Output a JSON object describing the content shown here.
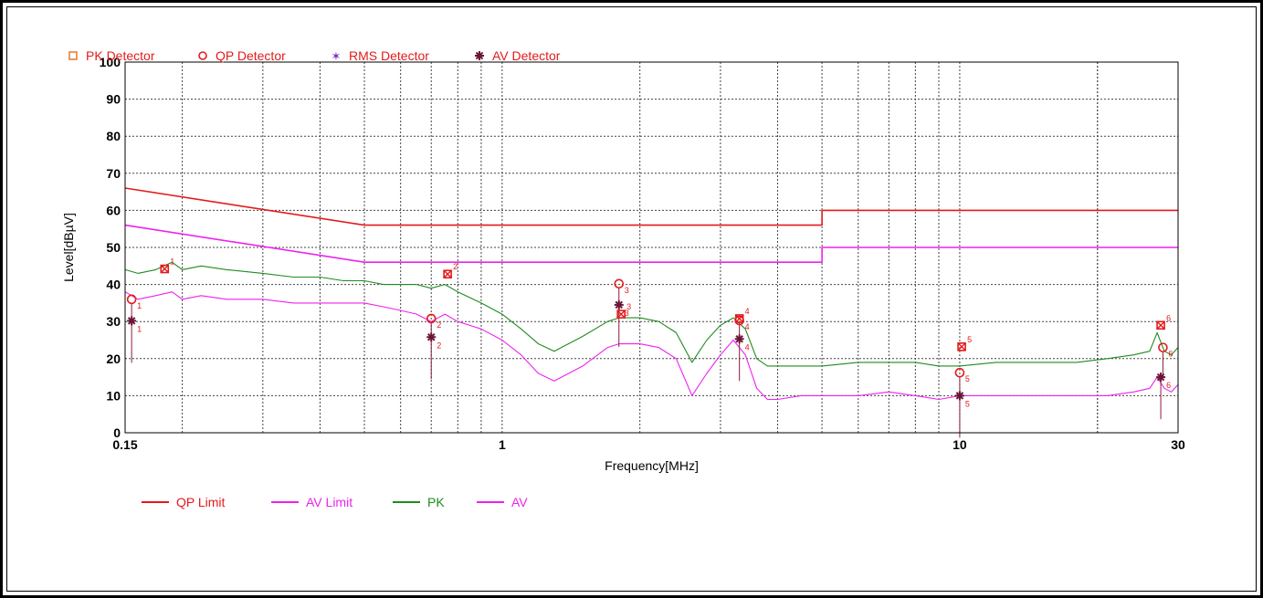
{
  "chart_data": {
    "type": "line",
    "title": "",
    "xlabel": "Frequency[MHz]",
    "ylabel": "Level[dBµV]",
    "x_scale": "log",
    "xlim": [
      0.15,
      30
    ],
    "ylim": [
      0,
      100
    ],
    "grid": true,
    "x_tick_labels": [
      {
        "value": 0.15,
        "label": "0.15"
      },
      {
        "value": 1,
        "label": "1"
      },
      {
        "value": 10,
        "label": "10"
      },
      {
        "value": 30,
        "label": "30"
      }
    ],
    "y_ticks": [
      0,
      10,
      20,
      30,
      40,
      50,
      60,
      70,
      80,
      90,
      100
    ],
    "detector_legend": [
      {
        "name": "PK Detector",
        "symbol": "□",
        "color": "#e8803a"
      },
      {
        "name": "QP Detector",
        "symbol": "○",
        "color": "#e41a1c"
      },
      {
        "name": "RMS Detector",
        "symbol": "✶",
        "color": "#7b2fbe"
      },
      {
        "name": "AV Detector",
        "symbol": "✱",
        "color": "#6b1538"
      }
    ],
    "line_legend": [
      {
        "name": "QP Limit",
        "color": "#e41a1c"
      },
      {
        "name": "AV Limit",
        "color": "#ee22ee"
      },
      {
        "name": "PK",
        "color": "#1e8c1e"
      },
      {
        "name": "AV",
        "color": "#ee22ee"
      }
    ],
    "series": [
      {
        "name": "QP Limit",
        "color": "#e41a1c",
        "x": [
          0.15,
          0.5,
          0.5,
          5,
          5,
          30
        ],
        "y": [
          66,
          56,
          56,
          56,
          60,
          60
        ]
      },
      {
        "name": "AV Limit",
        "color": "#ee22ee",
        "x": [
          0.15,
          0.5,
          0.5,
          5,
          5,
          30
        ],
        "y": [
          56,
          46,
          46,
          46,
          50,
          50
        ]
      },
      {
        "name": "PK",
        "color": "#1e8c1e",
        "x": [
          0.15,
          0.16,
          0.175,
          0.19,
          0.2,
          0.22,
          0.25,
          0.3,
          0.35,
          0.4,
          0.45,
          0.5,
          0.55,
          0.6,
          0.65,
          0.7,
          0.75,
          0.8,
          0.9,
          1.0,
          1.1,
          1.2,
          1.3,
          1.5,
          1.7,
          1.8,
          2.0,
          2.2,
          2.4,
          2.6,
          2.8,
          3.0,
          3.2,
          3.4,
          3.6,
          3.8,
          4.0,
          4.5,
          5.0,
          6.0,
          7.0,
          8.0,
          9.0,
          10.0,
          12.0,
          15.0,
          18.0,
          21.0,
          24.0,
          26.0,
          27.0,
          28.0,
          29.0,
          30.0
        ],
        "y": [
          44,
          43,
          44,
          46,
          44,
          45,
          44,
          43,
          42,
          42,
          41,
          41,
          40,
          40,
          40,
          39,
          40,
          38,
          35,
          32,
          28,
          24,
          22,
          26,
          30,
          31,
          31,
          30,
          27,
          19,
          25,
          29,
          31,
          28,
          20,
          18,
          18,
          18,
          18,
          19,
          19,
          19,
          18,
          18,
          19,
          19,
          19,
          20,
          21,
          22,
          27,
          22,
          21,
          23
        ]
      },
      {
        "name": "AV",
        "color": "#ee22ee",
        "x": [
          0.15,
          0.16,
          0.175,
          0.19,
          0.2,
          0.22,
          0.25,
          0.3,
          0.35,
          0.4,
          0.45,
          0.5,
          0.55,
          0.6,
          0.65,
          0.7,
          0.75,
          0.8,
          0.9,
          1.0,
          1.1,
          1.2,
          1.3,
          1.5,
          1.7,
          1.8,
          2.0,
          2.2,
          2.4,
          2.6,
          2.8,
          3.0,
          3.2,
          3.4,
          3.6,
          3.8,
          4.0,
          4.5,
          5.0,
          6.0,
          7.0,
          8.0,
          9.0,
          10.0,
          12.0,
          15.0,
          18.0,
          21.0,
          24.0,
          26.0,
          27.0,
          28.0,
          29.0,
          30.0
        ],
        "y": [
          38,
          36,
          37,
          38,
          36,
          37,
          36,
          36,
          35,
          35,
          35,
          35,
          34,
          33,
          32,
          30,
          32,
          30,
          28,
          25,
          21,
          16,
          14,
          18,
          23,
          24,
          24,
          23,
          20,
          10,
          16,
          21,
          25,
          21,
          12,
          9,
          9,
          10,
          10,
          10,
          11,
          10,
          9,
          10,
          10,
          10,
          10,
          10,
          11,
          12,
          15,
          12,
          11,
          13
        ]
      }
    ],
    "markers": [
      {
        "id": "1",
        "pk": {
          "x": 0.183,
          "y": 44.2
        },
        "qp": {
          "x": 0.155,
          "y": 36.0
        },
        "av": {
          "x": 0.155,
          "y": 30.2
        }
      },
      {
        "id": "2",
        "pk": {
          "x": 0.76,
          "y": 42.8
        },
        "qp": {
          "x": 0.7,
          "y": 30.8
        },
        "av": {
          "x": 0.7,
          "y": 25.8
        }
      },
      {
        "id": "3",
        "pk": {
          "x": 1.82,
          "y": 32.0
        },
        "qp": {
          "x": 1.8,
          "y": 40.2
        },
        "av": {
          "x": 1.8,
          "y": 34.5
        }
      },
      {
        "id": "4",
        "pk": {
          "x": 3.3,
          "y": 30.8
        },
        "qp": {
          "x": 3.3,
          "y": 30.3
        },
        "av": {
          "x": 3.3,
          "y": 25.3
        }
      },
      {
        "id": "5",
        "pk": {
          "x": 10.1,
          "y": 23.2
        },
        "qp": {
          "x": 10.0,
          "y": 16.2
        },
        "av": {
          "x": 10.0,
          "y": 10.0
        }
      },
      {
        "id": "6",
        "pk": {
          "x": 27.5,
          "y": 29.0
        },
        "qp": {
          "x": 27.8,
          "y": 23.0
        },
        "av": {
          "x": 27.5,
          "y": 15.0
        }
      }
    ]
  }
}
